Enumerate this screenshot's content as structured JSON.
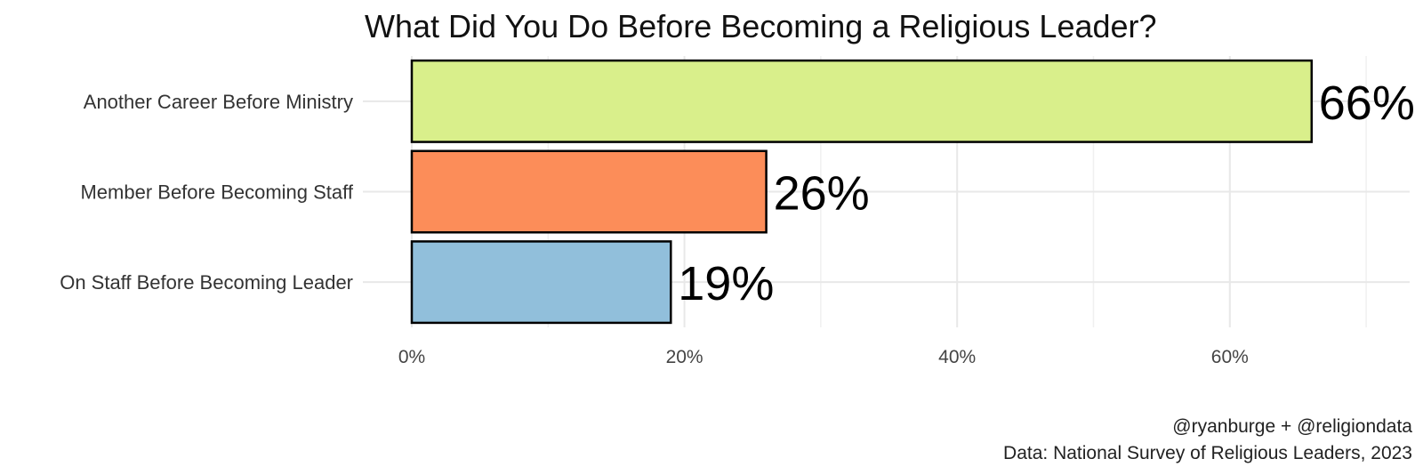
{
  "chart_data": {
    "type": "bar",
    "orientation": "horizontal",
    "title": "What Did You Do Before Becoming a Religious Leader?",
    "categories": [
      "Another Career Before Ministry",
      "Member Before Becoming Staff",
      "On Staff Before Becoming Leader"
    ],
    "values": [
      66,
      26,
      19
    ],
    "value_labels": [
      "66%",
      "26%",
      "19%"
    ],
    "colors": [
      "#d9ef8b",
      "#fc8d59",
      "#91bfdb"
    ],
    "xlim": [
      0,
      73
    ],
    "x_ticks": [
      0,
      20,
      40,
      60
    ],
    "x_tick_labels": [
      "0%",
      "20%",
      "40%",
      "60%"
    ],
    "xlabel": "",
    "ylabel": "",
    "grid": true,
    "legend": "none"
  },
  "caption": {
    "line1": "@ryanburge + @religiondata",
    "line2": "Data: National Survey of Religious Leaders, 2023"
  }
}
